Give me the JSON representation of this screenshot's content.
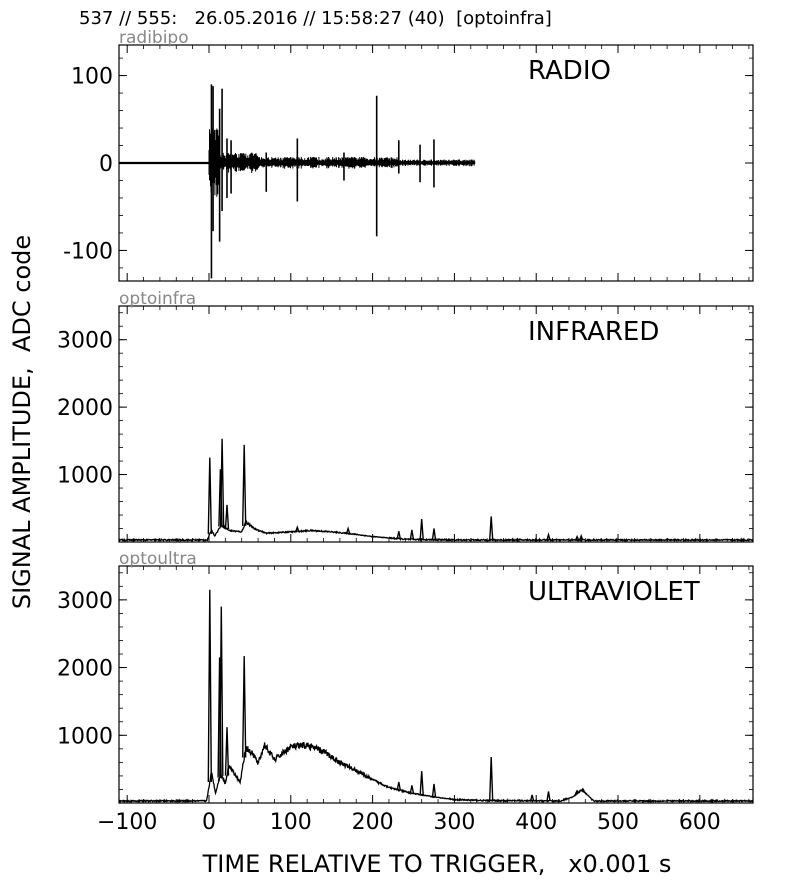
{
  "header": "537 // 555:   26.05.2016 // 15:58:27 (40)  [optoinfra]",
  "chart_data": {
    "type": "line",
    "ylabel": "SIGNAL AMPLITUDE,  ADC code",
    "xlabel": "TIME RELATIVE TO TRIGGER,   x0.001 s",
    "xlim": [
      -110,
      665
    ],
    "x_ticks": [
      -100,
      0,
      100,
      200,
      300,
      400,
      500,
      600
    ],
    "panels": [
      {
        "id": "radio",
        "channel": "radibipo",
        "title": "RADIO",
        "ylim": [
          -135,
          135
        ],
        "y_ticks": [
          -100,
          0,
          100
        ],
        "baseline": 0,
        "series_extent_x": [
          -110,
          325
        ],
        "noise_regions": [
          {
            "x": [
              0,
              12
            ],
            "amp": 40
          },
          {
            "x": [
              12,
              60
            ],
            "amp": 12
          },
          {
            "x": [
              60,
              230
            ],
            "amp": 7
          },
          {
            "x": [
              230,
              325
            ],
            "amp": 4
          }
        ],
        "spikes": [
          {
            "x": 3,
            "min": -132,
            "max": 90
          },
          {
            "x": 5,
            "min": -78,
            "max": 88
          },
          {
            "x": 13,
            "min": -90,
            "max": 62
          },
          {
            "x": 16,
            "min": -55,
            "max": 85
          },
          {
            "x": 22,
            "min": -40,
            "max": 28
          },
          {
            "x": 27,
            "min": -35,
            "max": 26
          },
          {
            "x": 70,
            "min": -33,
            "max": 12
          },
          {
            "x": 108,
            "min": -44,
            "max": 28
          },
          {
            "x": 165,
            "min": -20,
            "max": 12
          },
          {
            "x": 205,
            "min": -84,
            "max": 77
          },
          {
            "x": 232,
            "min": -12,
            "max": 26
          },
          {
            "x": 258,
            "min": -22,
            "max": 21
          },
          {
            "x": 275,
            "min": -28,
            "max": 27
          }
        ]
      },
      {
        "id": "infrared",
        "channel": "optoinfra",
        "title": "INFRARED",
        "ylim": [
          0,
          3500
        ],
        "y_ticks": [
          1000,
          2000,
          3000
        ],
        "baseline": 30,
        "envelope": [
          {
            "x": -110,
            "y": 30
          },
          {
            "x": -2,
            "y": 30
          },
          {
            "x": 3,
            "y": 180
          },
          {
            "x": 7,
            "y": 90
          },
          {
            "x": 15,
            "y": 250
          },
          {
            "x": 25,
            "y": 170
          },
          {
            "x": 40,
            "y": 150
          },
          {
            "x": 45,
            "y": 300
          },
          {
            "x": 55,
            "y": 200
          },
          {
            "x": 70,
            "y": 130
          },
          {
            "x": 100,
            "y": 150
          },
          {
            "x": 125,
            "y": 170
          },
          {
            "x": 150,
            "y": 150
          },
          {
            "x": 175,
            "y": 120
          },
          {
            "x": 200,
            "y": 80
          },
          {
            "x": 240,
            "y": 40
          },
          {
            "x": 300,
            "y": 30
          },
          {
            "x": 665,
            "y": 30
          }
        ],
        "spikes": [
          {
            "x": 1,
            "y": 1250
          },
          {
            "x": 14,
            "y": 1080
          },
          {
            "x": 16,
            "y": 1530
          },
          {
            "x": 22,
            "y": 550
          },
          {
            "x": 43,
            "y": 1440
          },
          {
            "x": 108,
            "y": 220
          },
          {
            "x": 170,
            "y": 200
          },
          {
            "x": 232,
            "y": 160
          },
          {
            "x": 248,
            "y": 180
          },
          {
            "x": 260,
            "y": 340
          },
          {
            "x": 275,
            "y": 200
          },
          {
            "x": 345,
            "y": 380
          },
          {
            "x": 415,
            "y": 110
          },
          {
            "x": 450,
            "y": 80
          },
          {
            "x": 455,
            "y": 90
          }
        ]
      },
      {
        "id": "ultraviolet",
        "channel": "optoultra",
        "title": "ULTRAVIOLET",
        "ylim": [
          0,
          3500
        ],
        "y_ticks": [
          1000,
          2000,
          3000
        ],
        "baseline": 30,
        "envelope": [
          {
            "x": -110,
            "y": 30
          },
          {
            "x": -3,
            "y": 30
          },
          {
            "x": 3,
            "y": 450
          },
          {
            "x": 8,
            "y": 150
          },
          {
            "x": 14,
            "y": 420
          },
          {
            "x": 20,
            "y": 300
          },
          {
            "x": 25,
            "y": 560
          },
          {
            "x": 32,
            "y": 420
          },
          {
            "x": 38,
            "y": 300
          },
          {
            "x": 45,
            "y": 820
          },
          {
            "x": 55,
            "y": 700
          },
          {
            "x": 60,
            "y": 580
          },
          {
            "x": 68,
            "y": 860
          },
          {
            "x": 80,
            "y": 640
          },
          {
            "x": 100,
            "y": 830
          },
          {
            "x": 120,
            "y": 850
          },
          {
            "x": 140,
            "y": 760
          },
          {
            "x": 160,
            "y": 600
          },
          {
            "x": 180,
            "y": 480
          },
          {
            "x": 200,
            "y": 340
          },
          {
            "x": 225,
            "y": 210
          },
          {
            "x": 250,
            "y": 140
          },
          {
            "x": 275,
            "y": 90
          },
          {
            "x": 300,
            "y": 50
          },
          {
            "x": 340,
            "y": 35
          },
          {
            "x": 430,
            "y": 30
          },
          {
            "x": 445,
            "y": 90
          },
          {
            "x": 455,
            "y": 190
          },
          {
            "x": 463,
            "y": 120
          },
          {
            "x": 470,
            "y": 30
          },
          {
            "x": 665,
            "y": 30
          }
        ],
        "spikes": [
          {
            "x": 1,
            "y": 3150
          },
          {
            "x": 13,
            "y": 2150
          },
          {
            "x": 15,
            "y": 2900
          },
          {
            "x": 22,
            "y": 1120
          },
          {
            "x": 43,
            "y": 2170
          },
          {
            "x": 232,
            "y": 310
          },
          {
            "x": 248,
            "y": 260
          },
          {
            "x": 260,
            "y": 470
          },
          {
            "x": 275,
            "y": 280
          },
          {
            "x": 345,
            "y": 680
          },
          {
            "x": 395,
            "y": 120
          },
          {
            "x": 415,
            "y": 170
          },
          {
            "x": 450,
            "y": 180
          },
          {
            "x": 457,
            "y": 210
          }
        ]
      }
    ]
  }
}
